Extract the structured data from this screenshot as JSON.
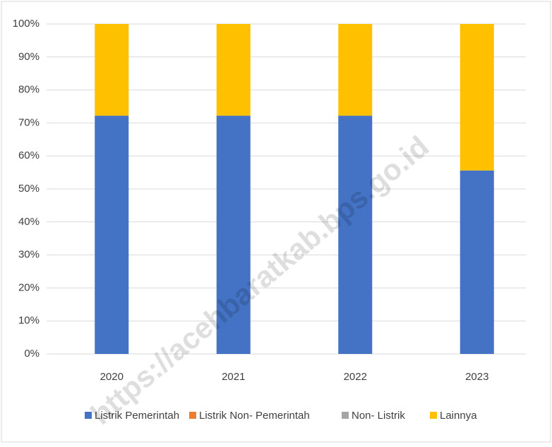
{
  "chart_data": {
    "type": "stacked_bar",
    "categories": [
      "2020",
      "2021",
      "2022",
      "2023"
    ],
    "series": [
      {
        "name": "Listrik Pemerintah",
        "color": "#4472c4",
        "values": [
          72.2,
          72.2,
          72.2,
          55.6
        ]
      },
      {
        "name": "Listrik Non- Pemerintah",
        "color": "#ed7d31",
        "values": [
          0,
          0,
          0,
          0
        ]
      },
      {
        "name": "Non- Listrik",
        "color": "#a5a5a5",
        "values": [
          0,
          0,
          0,
          0
        ]
      },
      {
        "name": "Lainnya",
        "color": "#ffc000",
        "values": [
          27.8,
          27.8,
          27.8,
          44.4
        ]
      }
    ],
    "ylim": [
      0,
      100
    ],
    "yticks": [
      {
        "value": 0,
        "label": "0%"
      },
      {
        "value": 10,
        "label": "10%"
      },
      {
        "value": 20,
        "label": "20%"
      },
      {
        "value": 30,
        "label": "30%"
      },
      {
        "value": 40,
        "label": "40%"
      },
      {
        "value": 50,
        "label": "50%"
      },
      {
        "value": 60,
        "label": "60%"
      },
      {
        "value": 70,
        "label": "70%"
      },
      {
        "value": 80,
        "label": "80%"
      },
      {
        "value": 90,
        "label": "90%"
      },
      {
        "value": 100,
        "label": "100%"
      }
    ],
    "grid": true,
    "legend": "bottom",
    "watermark": "https://acehbaratkab.bps.go.id"
  }
}
